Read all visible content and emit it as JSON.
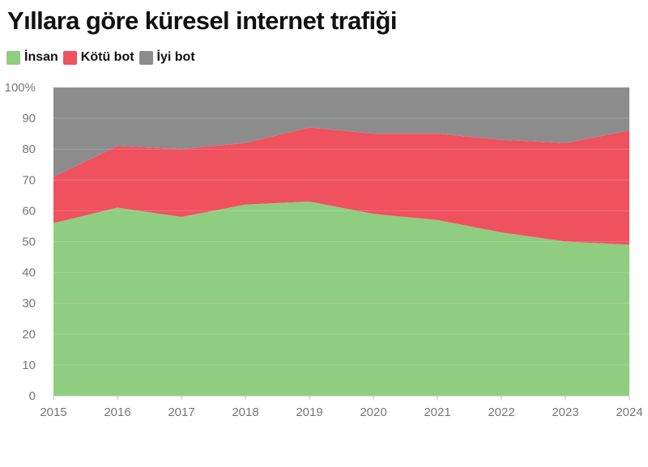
{
  "chart_data": {
    "type": "area",
    "stacked": true,
    "title": "Yıllara göre küresel internet trafiği",
    "xlabel": "",
    "ylabel": "",
    "x": [
      2015,
      2016,
      2017,
      2018,
      2019,
      2020,
      2021,
      2022,
      2023,
      2024
    ],
    "x_tick_labels": [
      "2015",
      "2016",
      "2017",
      "2018",
      "2019",
      "2020",
      "2021",
      "2022",
      "2023",
      "2024"
    ],
    "ylim": [
      0,
      100
    ],
    "y_ticks": [
      0,
      10,
      20,
      30,
      40,
      50,
      60,
      70,
      80,
      90,
      100
    ],
    "y_tick_labels": [
      "0",
      "10",
      "20",
      "30",
      "40",
      "50",
      "60",
      "70",
      "80",
      "90",
      "100%"
    ],
    "grid": "horizontal",
    "legend_position": "top-left",
    "series": [
      {
        "name": "İnsan",
        "color": "#8fcd80",
        "values": [
          56,
          61,
          58,
          62,
          63,
          59,
          57,
          53,
          50,
          49
        ]
      },
      {
        "name": "Kötü bot",
        "color": "#f0515f",
        "values": [
          15,
          20,
          22,
          20,
          24,
          26,
          28,
          30,
          32,
          37
        ]
      },
      {
        "name": "İyi bot",
        "color": "#8c8c8c",
        "values": [
          29,
          19,
          20,
          18,
          13,
          15,
          15,
          17,
          18,
          14
        ]
      }
    ]
  }
}
